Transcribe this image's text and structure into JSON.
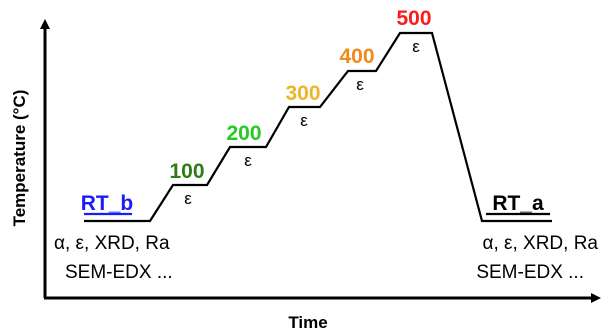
{
  "axes": {
    "x_label": "Time",
    "y_label": "Temperature (°C)"
  },
  "steps": [
    {
      "label": "RT_b",
      "color": "#1a1aff",
      "underline": true,
      "strain_label": ""
    },
    {
      "label": "100",
      "color": "#2e7d14",
      "underline": false,
      "strain_label": "ε"
    },
    {
      "label": "200",
      "color": "#22cc22",
      "underline": false,
      "strain_label": "ε"
    },
    {
      "label": "300",
      "color": "#f0b429",
      "underline": false,
      "strain_label": "ε"
    },
    {
      "label": "400",
      "color": "#f08a1a",
      "underline": false,
      "strain_label": "ε"
    },
    {
      "label": "500",
      "color": "#ff1a1a",
      "underline": false,
      "strain_label": "ε"
    },
    {
      "label": "RT_a",
      "color": "#000000",
      "underline": true,
      "strain_label": ""
    }
  ],
  "notes": {
    "before": {
      "line1": "α, ε, XRD, Ra",
      "line2": "SEM-EDX ..."
    },
    "after": {
      "line1": "α, ε, XRD, Ra",
      "line2": "SEM-EDX ..."
    }
  }
}
